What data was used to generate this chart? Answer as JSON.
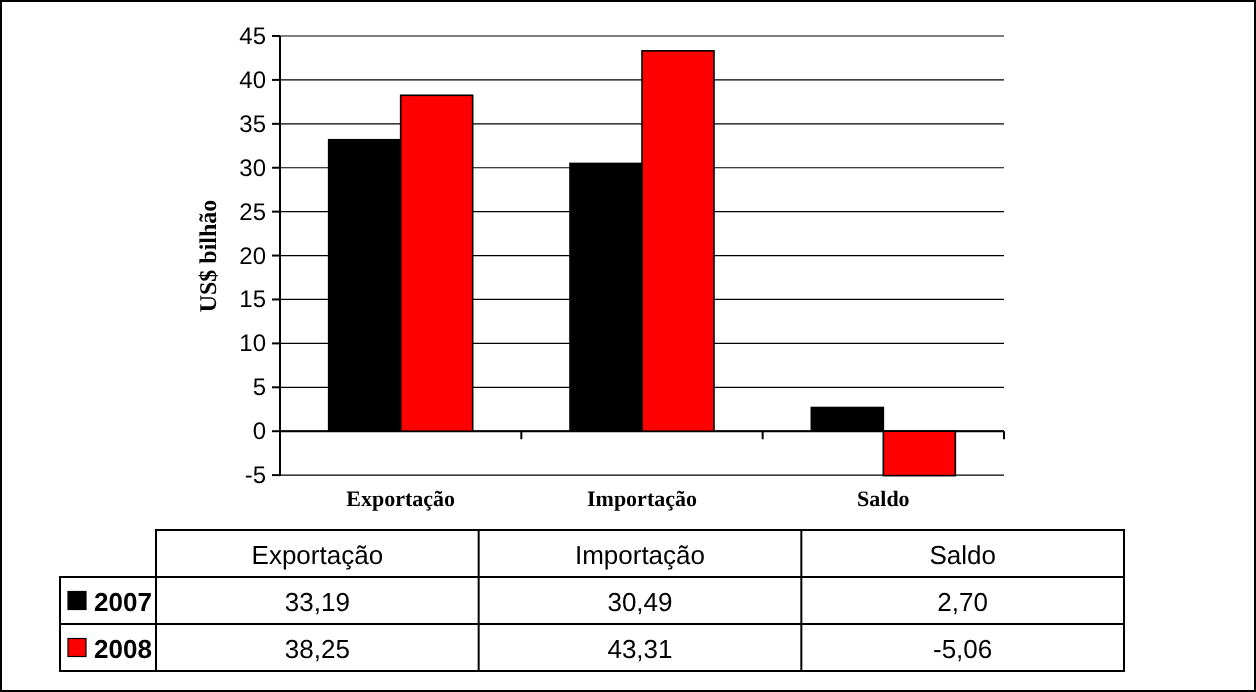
{
  "chart_data": {
    "type": "bar",
    "ylabel": "US$ bilhão",
    "categories": [
      "Exportação",
      "Importação",
      "Saldo"
    ],
    "series": [
      {
        "name": "2007",
        "color": "#000000",
        "values": [
          33.19,
          30.49,
          2.7
        ],
        "value_labels": [
          "33,19",
          "30,49",
          "2,70"
        ]
      },
      {
        "name": "2008",
        "color": "#ff0000",
        "values": [
          38.25,
          43.31,
          -5.06
        ],
        "value_labels": [
          "38,25",
          "43,31",
          "-5,06"
        ]
      }
    ],
    "ylim": [
      -5.1,
      45
    ],
    "yticks": [
      -5,
      0,
      5,
      10,
      15,
      20,
      25,
      30,
      35,
      40,
      45
    ],
    "grid": "y",
    "legend": "bottom"
  }
}
